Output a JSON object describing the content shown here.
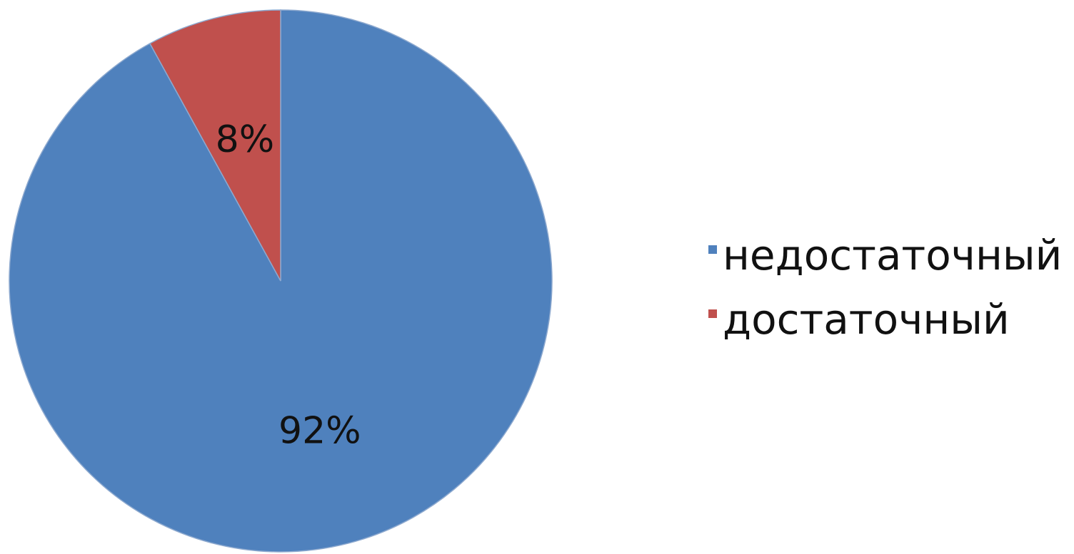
{
  "chart_data": {
    "type": "pie",
    "categories": [
      "недостаточный",
      "достаточный"
    ],
    "values": [
      92,
      8
    ],
    "data_labels": [
      "92%",
      "8%"
    ],
    "colors": [
      "#4f81bd",
      "#c0504d"
    ],
    "start_angle_deg": 0,
    "direction": "clockwise",
    "legend": {
      "position": "right",
      "entries": [
        "недостаточный",
        "достаточный"
      ]
    }
  }
}
